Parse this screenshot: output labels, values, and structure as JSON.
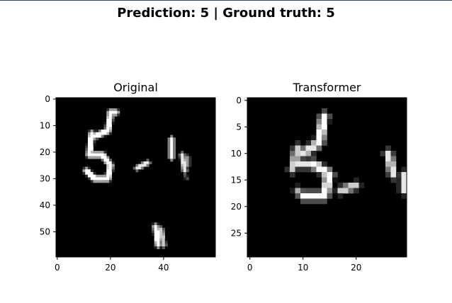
{
  "suptitle": "Prediction: 5 | Ground truth: 5",
  "chart_data": [
    {
      "type": "heatmap",
      "title": "Original",
      "colormap": "gray",
      "xlim": [
        -0.5,
        59.5
      ],
      "ylim": [
        59.5,
        -0.5
      ],
      "xticks": [
        0,
        20,
        40
      ],
      "yticks": [
        0,
        10,
        20,
        30,
        40,
        50
      ],
      "xticklabels": [
        "0",
        "20",
        "40"
      ],
      "yticklabels": [
        "0",
        "10",
        "20",
        "30",
        "40",
        "50"
      ],
      "strokes": [
        {
          "from": [
            20,
            5
          ],
          "to": [
            22,
            5
          ],
          "w": 1.3,
          "v": 1
        },
        {
          "from": [
            20,
            6
          ],
          "to": [
            19,
            12
          ],
          "w": 1.3,
          "v": 1
        },
        {
          "from": [
            19,
            12
          ],
          "to": [
            14,
            14
          ],
          "w": 1.3,
          "v": 1
        },
        {
          "from": [
            14,
            14
          ],
          "to": [
            17,
            13
          ],
          "w": 1.0,
          "v": 0.8
        },
        {
          "from": [
            13,
            13
          ],
          "to": [
            12,
            21
          ],
          "w": 1.3,
          "v": 1
        },
        {
          "from": [
            12,
            21
          ],
          "to": [
            17,
            21
          ],
          "w": 1.3,
          "v": 1
        },
        {
          "from": [
            17,
            21
          ],
          "to": [
            20,
            25
          ],
          "w": 1.3,
          "v": 1
        },
        {
          "from": [
            20,
            25
          ],
          "to": [
            19,
            30
          ],
          "w": 1.3,
          "v": 1
        },
        {
          "from": [
            19,
            30
          ],
          "to": [
            14,
            30
          ],
          "w": 1.3,
          "v": 1
        },
        {
          "from": [
            14,
            30
          ],
          "to": [
            11,
            27
          ],
          "w": 1.3,
          "v": 1
        },
        {
          "from": [
            30,
            26
          ],
          "to": [
            34,
            24
          ],
          "w": 1.0,
          "v": 0.9
        },
        {
          "from": [
            43,
            15
          ],
          "to": [
            43,
            22
          ],
          "w": 1.1,
          "v": 1
        },
        {
          "from": [
            47,
            21
          ],
          "to": [
            48,
            27
          ],
          "w": 1.0,
          "v": 0.9
        },
        {
          "from": [
            49,
            22
          ],
          "to": [
            49,
            25
          ],
          "w": 0.8,
          "v": 0.6
        },
        {
          "from": [
            48,
            29
          ],
          "to": [
            49,
            30
          ],
          "w": 0.5,
          "v": 0.3
        },
        {
          "from": [
            37,
            48
          ],
          "to": [
            38,
            55
          ],
          "w": 1.2,
          "v": 1
        },
        {
          "from": [
            39,
            49
          ],
          "to": [
            40,
            55
          ],
          "w": 1.0,
          "v": 0.8
        }
      ]
    },
    {
      "type": "heatmap",
      "title": "Transformer",
      "colormap": "gray",
      "xlim": [
        -0.5,
        29.5
      ],
      "ylim": [
        29.5,
        -0.5
      ],
      "xticks": [
        0,
        10,
        20
      ],
      "yticks": [
        0,
        5,
        10,
        15,
        20,
        25
      ],
      "xticklabels": [
        "0",
        "10",
        "20"
      ],
      "yticklabels": [
        "0",
        "5",
        "10",
        "15",
        "20",
        "25"
      ],
      "strokes": [
        {
          "from": [
            14,
            3
          ],
          "to": [
            13,
            8
          ],
          "w": 0.8,
          "v": 1
        },
        {
          "from": [
            13,
            8
          ],
          "to": [
            10,
            10
          ],
          "w": 0.8,
          "v": 0.9
        },
        {
          "from": [
            9,
            9
          ],
          "to": [
            8,
            13
          ],
          "w": 0.7,
          "v": 0.8
        },
        {
          "from": [
            9,
            12
          ],
          "to": [
            12,
            12
          ],
          "w": 0.7,
          "v": 0.9
        },
        {
          "from": [
            12,
            12
          ],
          "to": [
            15,
            14
          ],
          "w": 0.8,
          "v": 1
        },
        {
          "from": [
            15,
            14
          ],
          "to": [
            14,
            18
          ],
          "w": 0.8,
          "v": 1
        },
        {
          "from": [
            14,
            18
          ],
          "to": [
            10,
            18
          ],
          "w": 0.8,
          "v": 1
        },
        {
          "from": [
            10,
            18
          ],
          "to": [
            9,
            17
          ],
          "w": 0.6,
          "v": 0.7
        },
        {
          "from": [
            17,
            17
          ],
          "to": [
            20,
            16
          ],
          "w": 0.6,
          "v": 0.8
        },
        {
          "from": [
            26,
            10
          ],
          "to": [
            27,
            14
          ],
          "w": 0.7,
          "v": 0.9
        },
        {
          "from": [
            29,
            14
          ],
          "to": [
            29,
            17
          ],
          "w": 0.6,
          "v": 0.9
        }
      ]
    }
  ]
}
